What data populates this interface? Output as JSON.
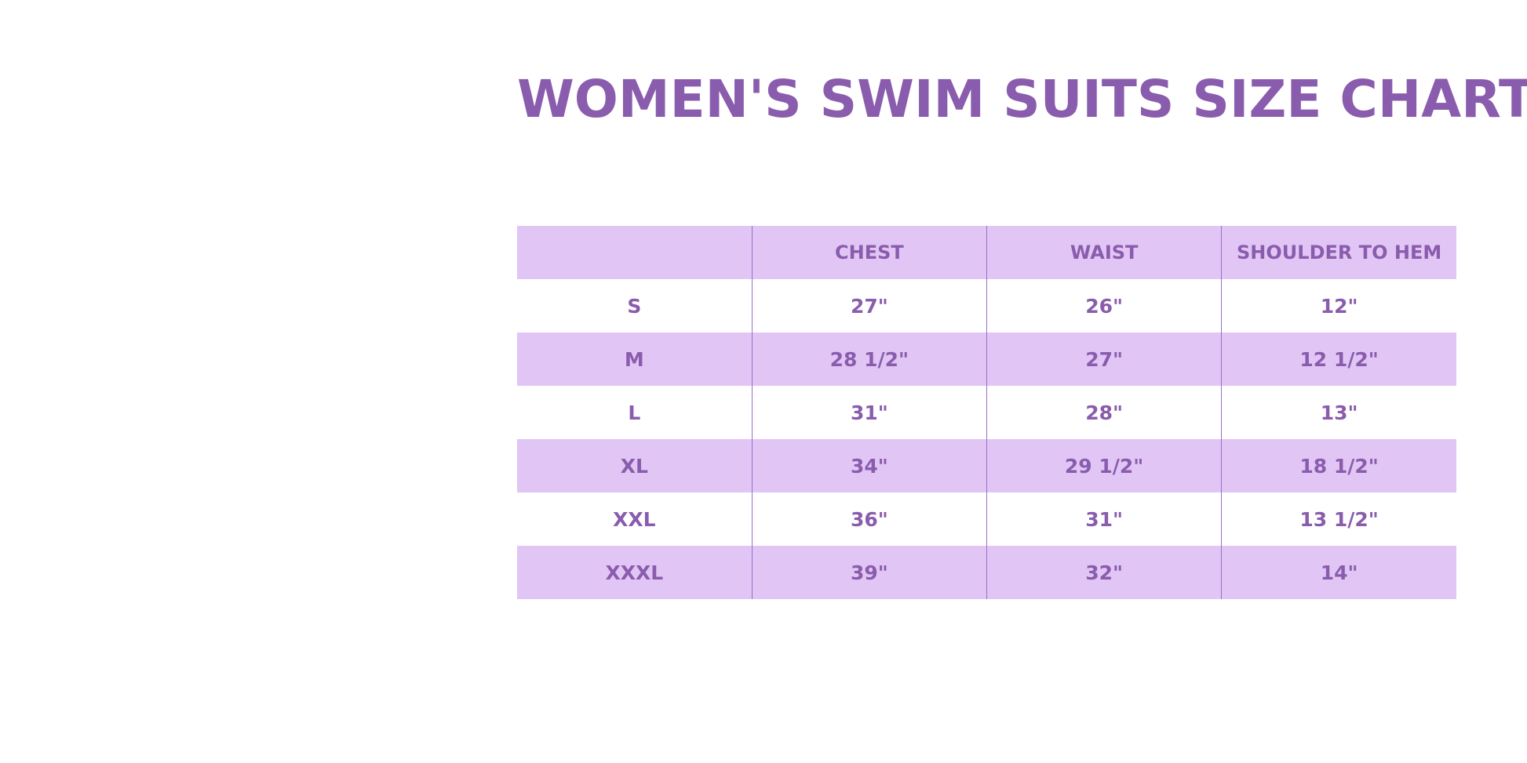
{
  "title": "WOMEN'S SWIM SUITS SIZE CHART",
  "colors": {
    "text": "#8a5cad",
    "band": "#e1c6f5",
    "divider": "#9b6fc4"
  },
  "table": {
    "headers": [
      "",
      "CHEST",
      "WAIST",
      "SHOULDER TO HEM"
    ],
    "rows": [
      [
        "S",
        "27\"",
        "26\"",
        "12\""
      ],
      [
        "M",
        "28 1/2\"",
        "27\"",
        "12 1/2\""
      ],
      [
        "L",
        "31\"",
        "28\"",
        "13\""
      ],
      [
        "XL",
        "34\"",
        "29 1/2\"",
        "18 1/2\""
      ],
      [
        "XXL",
        "36\"",
        "31\"",
        "13 1/2\""
      ],
      [
        "XXXL",
        "39\"",
        "32\"",
        "14\""
      ]
    ]
  }
}
